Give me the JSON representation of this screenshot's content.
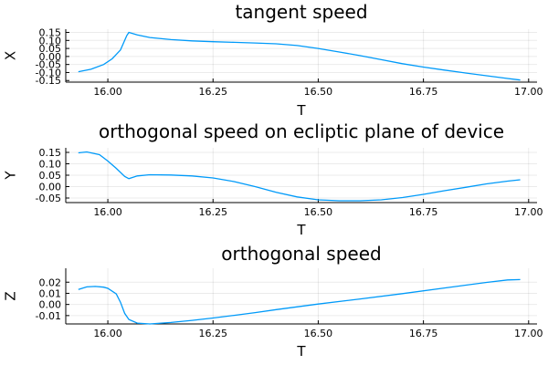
{
  "chart_data": [
    {
      "type": "line",
      "title": "tangent speed",
      "xlabel": "T",
      "ylabel": "X",
      "xlim": [
        15.9,
        17.02
      ],
      "ylim": [
        -0.16,
        0.17
      ],
      "xticks": [
        16.0,
        16.25,
        16.5,
        16.75,
        17.0
      ],
      "xtick_labels": [
        "16.00",
        "16.25",
        "16.50",
        "16.75",
        "17.00"
      ],
      "yticks": [
        0.15,
        0.1,
        0.05,
        0.0,
        -0.05,
        -0.1,
        -0.15
      ],
      "ytick_labels": [
        "0.15",
        "0.10",
        "0.05",
        "0.00",
        "-0.05",
        "-0.10",
        "-0.15"
      ],
      "grid": true,
      "series": [
        {
          "color": "#009af9",
          "x": [
            15.93,
            15.96,
            15.99,
            16.01,
            16.03,
            16.045,
            16.05,
            16.07,
            16.1,
            16.15,
            16.2,
            16.25,
            16.3,
            16.35,
            16.4,
            16.45,
            16.5,
            16.55,
            16.6,
            16.65,
            16.7,
            16.75,
            16.8,
            16.85,
            16.9,
            16.95,
            16.98
          ],
          "y": [
            -0.095,
            -0.08,
            -0.05,
            -0.015,
            0.04,
            0.13,
            0.15,
            0.135,
            0.118,
            0.105,
            0.097,
            0.092,
            0.088,
            0.084,
            0.079,
            0.068,
            0.05,
            0.028,
            0.005,
            -0.02,
            -0.045,
            -0.066,
            -0.085,
            -0.103,
            -0.12,
            -0.137,
            -0.147
          ]
        }
      ]
    },
    {
      "type": "line",
      "title": "orthogonal speed on ecliptic plane of device",
      "xlabel": "T",
      "ylabel": "Y",
      "xlim": [
        15.9,
        17.02
      ],
      "ylim": [
        -0.07,
        0.17
      ],
      "xticks": [
        16.0,
        16.25,
        16.5,
        16.75,
        17.0
      ],
      "xtick_labels": [
        "16.00",
        "16.25",
        "16.50",
        "16.75",
        "17.00"
      ],
      "yticks": [
        0.15,
        0.1,
        0.05,
        0.0,
        -0.05
      ],
      "ytick_labels": [
        "0.15",
        "0.10",
        "0.05",
        "0.00",
        "-0.05"
      ],
      "grid": true,
      "series": [
        {
          "color": "#009af9",
          "x": [
            15.93,
            15.95,
            15.98,
            16.0,
            16.02,
            16.04,
            16.05,
            16.07,
            16.1,
            16.15,
            16.2,
            16.25,
            16.3,
            16.35,
            16.4,
            16.45,
            16.5,
            16.55,
            16.6,
            16.65,
            16.7,
            16.75,
            16.8,
            16.85,
            16.9,
            16.95,
            16.98
          ],
          "y": [
            0.148,
            0.152,
            0.14,
            0.112,
            0.08,
            0.045,
            0.035,
            0.047,
            0.052,
            0.051,
            0.047,
            0.038,
            0.022,
            0.0,
            -0.025,
            -0.045,
            -0.058,
            -0.062,
            -0.062,
            -0.058,
            -0.048,
            -0.034,
            -0.018,
            -0.003,
            0.012,
            0.024,
            0.03
          ]
        }
      ]
    },
    {
      "type": "line",
      "title": "orthogonal speed",
      "xlabel": "T",
      "ylabel": "Z",
      "xlim": [
        15.9,
        17.02
      ],
      "ylim": [
        -0.0175,
        0.0325
      ],
      "xticks": [
        16.0,
        16.25,
        16.5,
        16.75,
        17.0
      ],
      "xtick_labels": [
        "16.00",
        "16.25",
        "16.50",
        "16.75",
        "17.00"
      ],
      "yticks": [
        0.02,
        0.01,
        0.0,
        -0.01
      ],
      "ytick_labels": [
        "0.02",
        "0.01",
        "0.00",
        "-0.01"
      ],
      "grid": true,
      "series": [
        {
          "color": "#009af9",
          "x": [
            15.93,
            15.95,
            15.97,
            15.99,
            16.0,
            16.02,
            16.03,
            16.04,
            16.05,
            16.07,
            16.1,
            16.15,
            16.2,
            16.25,
            16.3,
            16.35,
            16.4,
            16.5,
            16.6,
            16.7,
            16.8,
            16.9,
            16.95,
            16.98
          ],
          "y": [
            0.0135,
            0.0158,
            0.0162,
            0.0155,
            0.0145,
            0.0095,
            0.002,
            -0.008,
            -0.0135,
            -0.0168,
            -0.0175,
            -0.0162,
            -0.0143,
            -0.0122,
            -0.0098,
            -0.0073,
            -0.0046,
            0.0004,
            0.005,
            0.0097,
            0.0148,
            0.0198,
            0.022,
            0.0223
          ]
        }
      ]
    }
  ]
}
